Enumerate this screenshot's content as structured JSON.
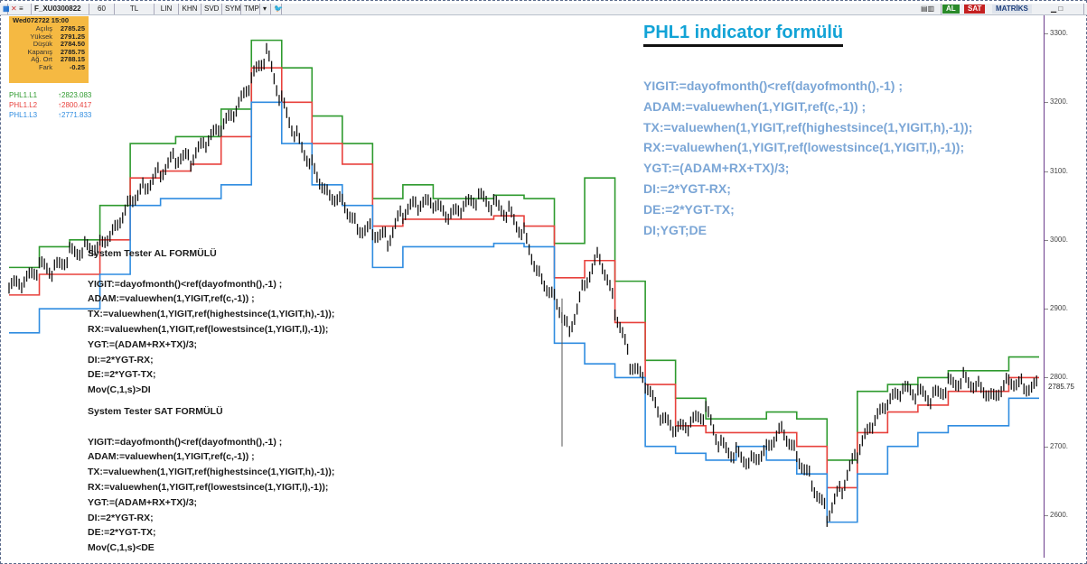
{
  "toolbar": {
    "symbol": "F_XU0300822",
    "period": "60",
    "currency": "TL",
    "buttons": [
      "LIN",
      "KHN",
      "SVD",
      "SYM",
      "TMP"
    ],
    "right_buttons": {
      "al": "AL",
      "sat": "SAT",
      "matriks": "MATRİKS"
    }
  },
  "ohlc_box": {
    "header": "Wed072722 15:00",
    "rows": [
      {
        "label": "Açılış",
        "value": "2785.25"
      },
      {
        "label": "Yüksek",
        "value": "2791.25"
      },
      {
        "label": "Düşük",
        "value": "2784.50"
      },
      {
        "label": "Kapanış",
        "value": "2785.75"
      },
      {
        "label": "Ağ. Ort",
        "value": "2788.15"
      },
      {
        "label": "Fark",
        "value": "-0.25"
      }
    ]
  },
  "indicators": [
    {
      "name": "PHL1.L1",
      "value": "↑2823.083",
      "color": "#2e9a2e"
    },
    {
      "name": "PHL1.L2",
      "value": "↑2800.417",
      "color": "#e8413c"
    },
    {
      "name": "PHL1.L3",
      "value": "↑2771.833",
      "color": "#2f8ce0"
    }
  ],
  "title": "PHL1 indicator formülü",
  "formula_lines": [
    "YIGIT:=dayofmonth()<ref(dayofmonth(),-1) ;",
    "ADAM:=valuewhen(1,YIGIT,ref(c,-1)) ;",
    "TX:=valuewhen(1,YIGIT,ref(highestsince(1,YIGIT,h),-1));",
    "RX:=valuewhen(1,YIGIT,ref(lowestsince(1,YIGIT,l),-1));",
    "YGT:=(ADAM+RX+TX)/3;",
    "DI:=2*YGT-RX;",
    "DE:=2*YGT-TX;",
    "DI;YGT;DE"
  ],
  "al_block": {
    "title": "System Tester AL FORMÜLÜ",
    "lines": [
      "YIGIT:=dayofmonth()<ref(dayofmonth(),-1) ;",
      "ADAM:=valuewhen(1,YIGIT,ref(c,-1)) ;",
      "TX:=valuewhen(1,YIGIT,ref(highestsince(1,YIGIT,h),-1));",
      "RX:=valuewhen(1,YIGIT,ref(lowestsince(1,YIGIT,l),-1));",
      "YGT:=(ADAM+RX+TX)/3;",
      "DI:=2*YGT-RX;",
      "DE:=2*YGT-TX;",
      "Mov(C,1,s)>DI"
    ]
  },
  "sat_block": {
    "title": "System Tester SAT FORMÜLÜ",
    "lines": [
      "YIGIT:=dayofmonth()<ref(dayofmonth(),-1) ;",
      "ADAM:=valuewhen(1,YIGIT,ref(c,-1)) ;",
      "TX:=valuewhen(1,YIGIT,ref(highestsince(1,YIGIT,h),-1));",
      "RX:=valuewhen(1,YIGIT,ref(lowestsince(1,YIGIT,l),-1));",
      "YGT:=(ADAM+RX+TX)/3;",
      "DI:=2*YGT-RX;",
      "DE:=2*YGT-TX;",
      "Mov(C,1,s)<DE"
    ]
  },
  "chart_data": {
    "type": "line",
    "y_ticks": [
      "3300.",
      "3200.",
      "3100.",
      "3000.",
      "2900.",
      "2800.",
      "2700.",
      "2600."
    ],
    "last_price": "2785.75",
    "ylim": [
      2560,
      3310
    ],
    "series": [
      {
        "name": "PHL1.L1",
        "color": "#2e9a2e",
        "values": [
          2960,
          2960,
          2990,
          2990,
          3000,
          3000,
          3050,
          3050,
          3140,
          3140,
          3140,
          3150,
          3150,
          3150,
          3190,
          3190,
          3290,
          3290,
          3250,
          3250,
          3180,
          3180,
          3140,
          3140,
          3060,
          3060,
          3080,
          3080,
          3060,
          3060,
          3060,
          3060,
          3065,
          3065,
          3060,
          3060,
          2995,
          2995,
          3090,
          3090,
          2940,
          2940,
          2825,
          2825,
          2770,
          2770,
          2740,
          2740,
          2740,
          2740,
          2750,
          2750,
          2740,
          2740,
          2680,
          2680,
          2780,
          2780,
          2790,
          2790,
          2800,
          2800,
          2810,
          2810,
          2810,
          2810,
          2830,
          2830,
          2830
        ]
      },
      {
        "name": "PHL1.L2",
        "color": "#e8413c",
        "values": [
          2920,
          2920,
          2950,
          2950,
          2950,
          2950,
          3000,
          3000,
          3090,
          3090,
          3100,
          3100,
          3110,
          3110,
          3150,
          3150,
          3250,
          3250,
          3200,
          3200,
          3140,
          3140,
          3110,
          3110,
          3020,
          3020,
          3030,
          3030,
          3030,
          3030,
          3030,
          3030,
          3035,
          3035,
          3020,
          3020,
          2945,
          2945,
          2970,
          2970,
          2880,
          2880,
          2790,
          2790,
          2730,
          2730,
          2720,
          2720,
          2720,
          2720,
          2720,
          2720,
          2700,
          2700,
          2640,
          2640,
          2720,
          2720,
          2750,
          2750,
          2760,
          2760,
          2780,
          2780,
          2780,
          2780,
          2800,
          2800,
          2800
        ]
      },
      {
        "name": "PHL1.L3",
        "color": "#2f8ce0",
        "values": [
          2865,
          2865,
          2900,
          2900,
          2900,
          2900,
          2950,
          2950,
          3050,
          3050,
          3060,
          3060,
          3060,
          3060,
          3080,
          3080,
          3200,
          3200,
          3140,
          3140,
          3080,
          3080,
          3050,
          3050,
          2960,
          2960,
          2990,
          2990,
          2990,
          2990,
          2990,
          2990,
          2995,
          2995,
          2990,
          2990,
          2850,
          2850,
          2820,
          2820,
          2800,
          2800,
          2700,
          2700,
          2690,
          2690,
          2680,
          2680,
          2700,
          2700,
          2680,
          2680,
          2660,
          2660,
          2590,
          2590,
          2660,
          2660,
          2700,
          2700,
          2720,
          2720,
          2730,
          2730,
          2730,
          2730,
          2770,
          2770,
          2770
        ]
      },
      {
        "name": "",
        "color": "#000000",
        "values": [
          2930,
          2935,
          2960,
          2955,
          2980,
          2990,
          2995,
          3020,
          3060,
          3080,
          3100,
          3120,
          3115,
          3140,
          3160,
          3185,
          3230,
          3270,
          3200,
          3150,
          3110,
          3070,
          3060,
          3020,
          3015,
          3000,
          3040,
          3050,
          3050,
          3030,
          3045,
          3060,
          3050,
          3040,
          3010,
          2950,
          2920,
          2870,
          2940,
          2980,
          2900,
          2820,
          2790,
          2740,
          2720,
          2730,
          2750,
          2700,
          2690,
          2680,
          2700,
          2730,
          2690,
          2650,
          2600,
          2640,
          2690,
          2730,
          2760,
          2780,
          2775,
          2770,
          2790,
          2800,
          2790,
          2775,
          2800,
          2790,
          2786
        ]
      }
    ]
  }
}
